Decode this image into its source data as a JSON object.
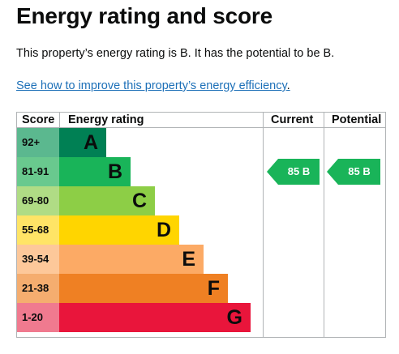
{
  "title": "Energy rating and score",
  "summary": "This property’s energy rating is B. It has the potential to be B.",
  "link": {
    "text": "See how to improve this property’s energy efficiency",
    "after": "."
  },
  "chart": {
    "headers": {
      "score": "Score",
      "rating": "Energy rating",
      "current": "Current",
      "potential": "Potential"
    },
    "bands": [
      {
        "score": "92+",
        "letter": "A",
        "color": "#008054",
        "score_bg": "#5bb88f"
      },
      {
        "score": "81-91",
        "letter": "B",
        "color": "#19b459",
        "score_bg": "#69c98e"
      },
      {
        "score": "69-80",
        "letter": "C",
        "color": "#8dce46",
        "score_bg": "#b0dc85"
      },
      {
        "score": "55-68",
        "letter": "D",
        "color": "#ffd500",
        "score_bg": "#ffe466"
      },
      {
        "score": "39-54",
        "letter": "E",
        "color": "#fcaa65",
        "score_bg": "#fdc89a"
      },
      {
        "score": "21-38",
        "letter": "F",
        "color": "#ef8023",
        "score_bg": "#f5ad6f"
      },
      {
        "score": "1-20",
        "letter": "G",
        "color": "#e9153b",
        "score_bg": "#f07a8f"
      }
    ],
    "current": {
      "label": "85 B",
      "band": "B",
      "color": "#19b459"
    },
    "potential": {
      "label": "85 B",
      "band": "B",
      "color": "#19b459"
    }
  }
}
